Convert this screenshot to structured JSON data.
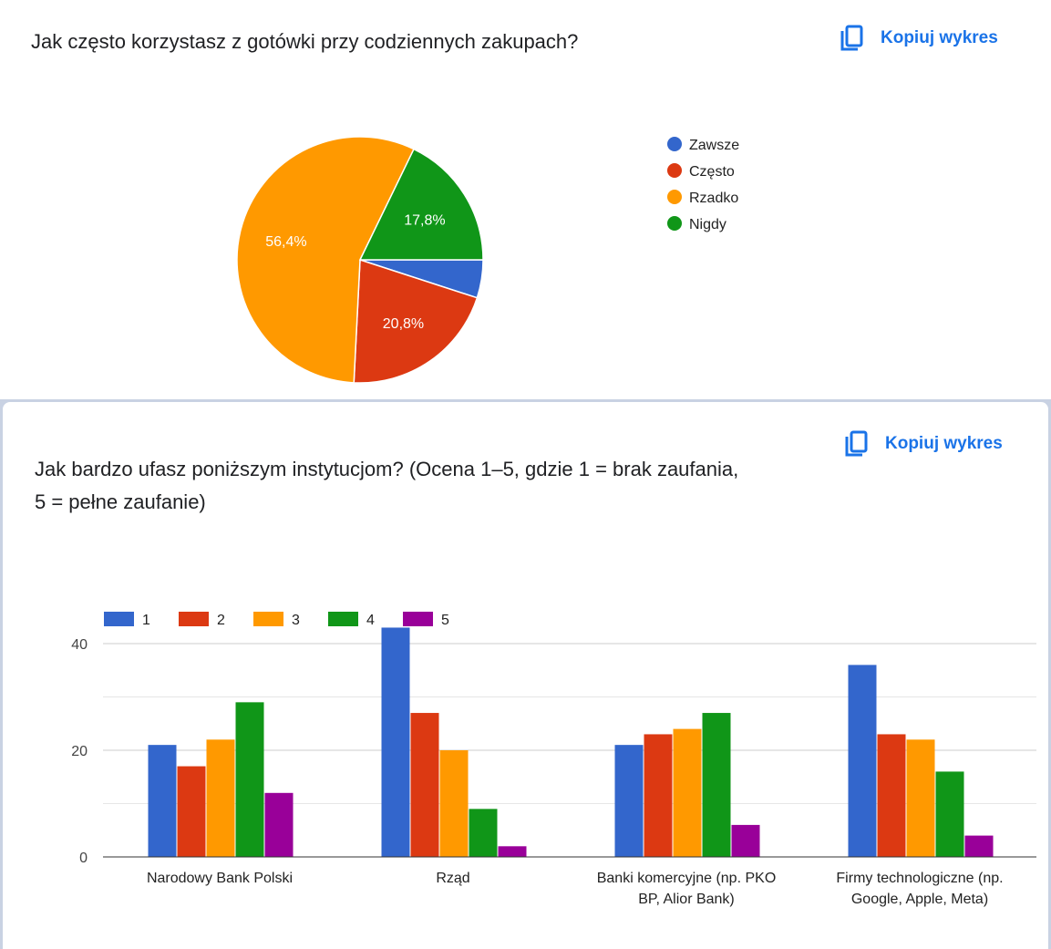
{
  "pie_card": {
    "question": "Jak często korzystasz z gotówki przy codziennych zakupach?",
    "copy_label": "Kopiuj wykres"
  },
  "bar_card": {
    "question": "Jak bardzo ufasz poniższym instytucjom? (Ocena 1–5, gdzie 1 = brak zaufania, 5 = pełne zaufanie)",
    "copy_label": "Kopiuj wykres"
  },
  "chart_data": [
    {
      "type": "pie",
      "labels": [
        "Zawsze",
        "Często",
        "Rzadko",
        "Nigdy"
      ],
      "values": [
        5.0,
        20.8,
        56.4,
        17.8
      ],
      "data_labels": [
        "",
        "20,8%",
        "56,4%",
        "17,8%"
      ],
      "colors": [
        "#3366cc",
        "#dc3912",
        "#ff9900",
        "#109618"
      ],
      "legend": "right"
    },
    {
      "type": "bar",
      "categories": [
        [
          "Narodowy Bank Polski"
        ],
        [
          "Rząd"
        ],
        [
          "Banki komercyjne (np. PKO",
          "BP, Alior Bank)"
        ],
        [
          "Firmy technologiczne (np.",
          "Google, Apple, Meta)"
        ]
      ],
      "series": [
        {
          "name": "1",
          "color": "#3366cc",
          "values": [
            21,
            43,
            21,
            36
          ]
        },
        {
          "name": "2",
          "color": "#dc3912",
          "values": [
            17,
            27,
            23,
            23
          ]
        },
        {
          "name": "3",
          "color": "#ff9900",
          "values": [
            22,
            20,
            24,
            22
          ]
        },
        {
          "name": "4",
          "color": "#109618",
          "values": [
            29,
            9,
            27,
            16
          ]
        },
        {
          "name": "5",
          "color": "#990099",
          "values": [
            12,
            2,
            6,
            4
          ]
        }
      ],
      "ylim": [
        0,
        40
      ],
      "yticks": [
        "0",
        "20",
        "40"
      ],
      "grid": true,
      "legend": "top"
    }
  ]
}
